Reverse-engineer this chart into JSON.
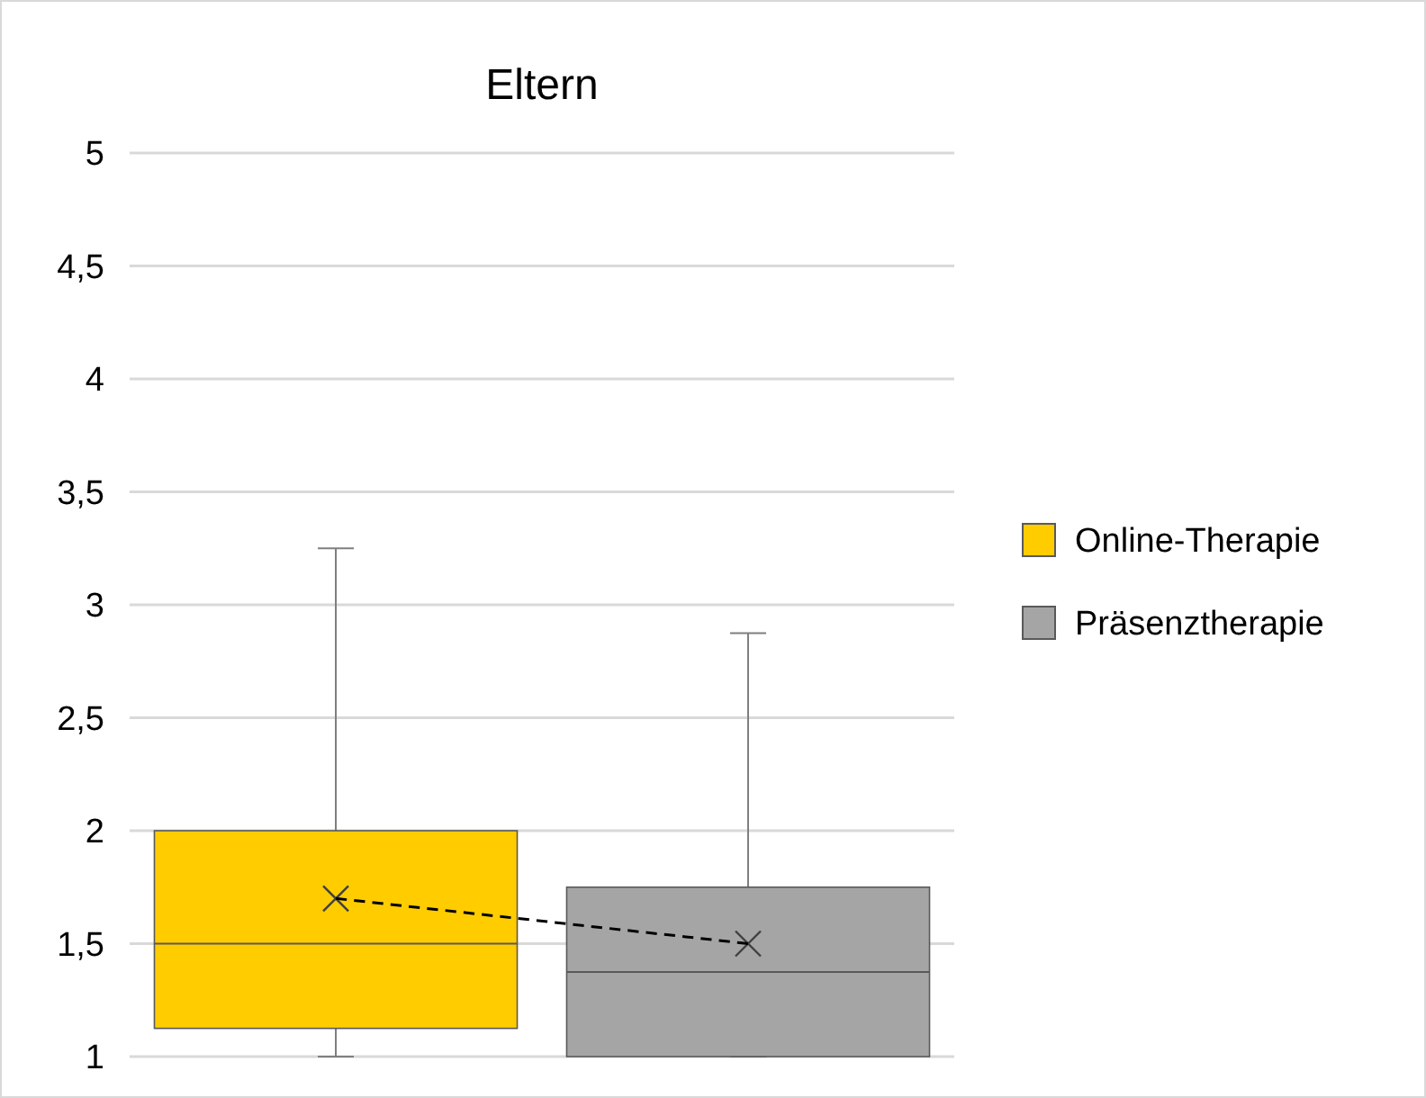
{
  "chart_data": {
    "type": "box",
    "title": "Eltern",
    "categories": [
      null,
      null
    ],
    "series": [
      {
        "name": "Online-Therapie",
        "color": "#ffcc00",
        "boxes": [
          {
            "low": 1,
            "q1": 1.125,
            "median": 1.5,
            "q3": 2,
            "high": 3.25,
            "mean": 1.7
          },
          null
        ]
      },
      {
        "name": "Präsenztherapie",
        "color": "#a5a5a5",
        "boxes": [
          null,
          {
            "low": 1,
            "q1": 1,
            "median": 1.375,
            "q3": 1.75,
            "high": 2.875,
            "mean": 1.5
          }
        ]
      },
      {
        "type": "line",
        "color": "#000000",
        "line_style": "dashed",
        "marker": "none",
        "values": [
          1.7,
          1.5
        ]
      }
    ],
    "ylim": [
      1,
      5
    ],
    "yticks": [
      1,
      {
        "value": 1.5,
        "label": "1,5"
      },
      2,
      {
        "value": 2.5,
        "label": "2,5"
      },
      3,
      {
        "value": 3.5,
        "label": "3,5"
      },
      4,
      {
        "value": 4.5,
        "label": "4,5"
      },
      5
    ],
    "grid": "y",
    "legend": "right",
    "marker": "cross"
  }
}
